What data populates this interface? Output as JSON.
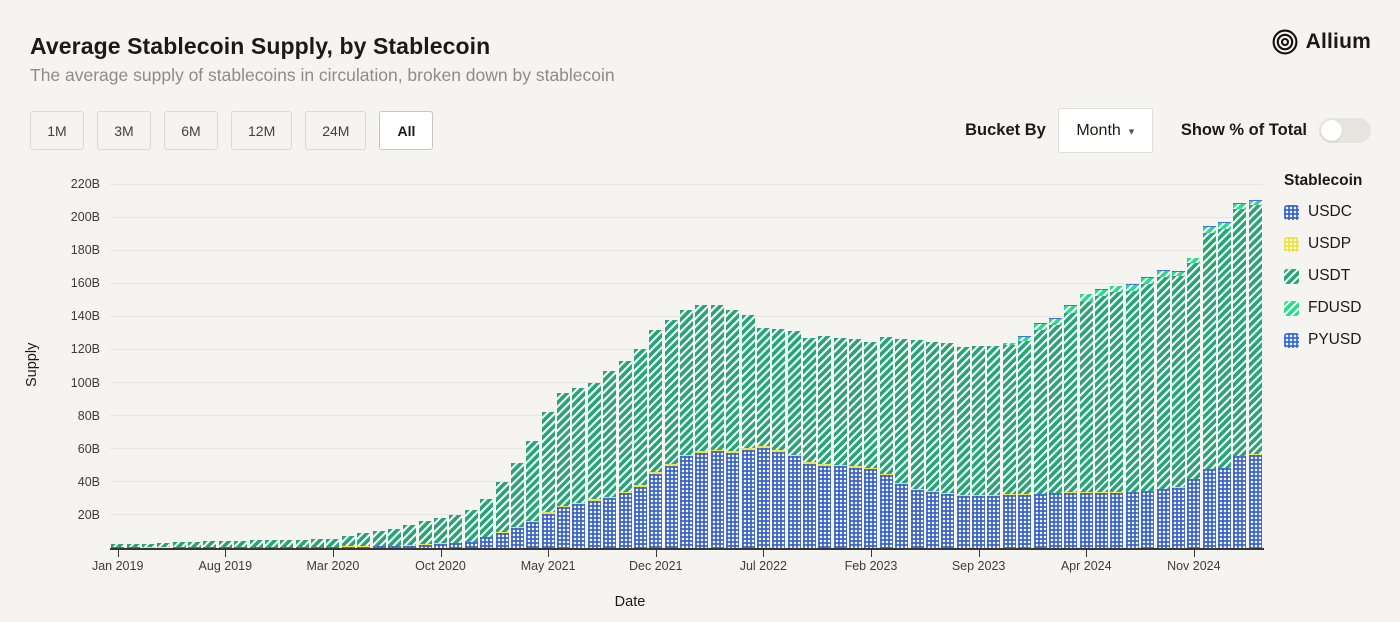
{
  "header": {
    "title": "Average Stablecoin Supply, by Stablecoin",
    "subtitle": "The average supply of stablecoins in circulation, broken down by stablecoin",
    "brand": "Allium"
  },
  "controls": {
    "ranges": [
      "1M",
      "3M",
      "6M",
      "12M",
      "24M",
      "All"
    ],
    "active_range": "All",
    "bucket_by_label": "Bucket By",
    "bucket_value": "Month",
    "toggle_label": "Show % of Total",
    "toggle_on": false
  },
  "chart_data": {
    "type": "bar",
    "stacked": true,
    "xlabel": "Date",
    "ylabel": "Supply",
    "legend_title": "Stablecoin",
    "legend_position": "right",
    "grid": true,
    "ylim": [
      0,
      220
    ],
    "yticks": [
      "20B",
      "40B",
      "60B",
      "80B",
      "100B",
      "120B",
      "140B",
      "160B",
      "180B",
      "200B",
      "220B"
    ],
    "x_tick_labels": [
      "Jan 2019",
      "Aug 2019",
      "Mar 2020",
      "Oct 2020",
      "May 2021",
      "Dec 2021",
      "Jul 2022",
      "Feb 2023",
      "Sep 2023",
      "Apr 2024",
      "Nov 2024"
    ],
    "x_tick_every": 7,
    "unit": "B",
    "x": [
      "Jan 2019",
      "Feb 2019",
      "Mar 2019",
      "Apr 2019",
      "May 2019",
      "Jun 2019",
      "Jul 2019",
      "Aug 2019",
      "Sep 2019",
      "Oct 2019",
      "Nov 2019",
      "Dec 2019",
      "Jan 2020",
      "Feb 2020",
      "Mar 2020",
      "Apr 2020",
      "May 2020",
      "Jun 2020",
      "Jul 2020",
      "Aug 2020",
      "Sep 2020",
      "Oct 2020",
      "Nov 2020",
      "Dec 2020",
      "Jan 2021",
      "Feb 2021",
      "Mar 2021",
      "Apr 2021",
      "May 2021",
      "Jun 2021",
      "Jul 2021",
      "Aug 2021",
      "Sep 2021",
      "Oct 2021",
      "Nov 2021",
      "Dec 2021",
      "Jan 2022",
      "Feb 2022",
      "Mar 2022",
      "Apr 2022",
      "May 2022",
      "Jun 2022",
      "Jul 2022",
      "Aug 2022",
      "Sep 2022",
      "Oct 2022",
      "Nov 2022",
      "Dec 2022",
      "Jan 2023",
      "Feb 2023",
      "Mar 2023",
      "Apr 2023",
      "May 2023",
      "Jun 2023",
      "Jul 2023",
      "Aug 2023",
      "Sep 2023",
      "Oct 2023",
      "Nov 2023",
      "Dec 2023",
      "Jan 2024",
      "Feb 2024",
      "Mar 2024",
      "Apr 2024",
      "May 2024",
      "Jun 2024",
      "Jul 2024",
      "Aug 2024",
      "Sep 2024",
      "Oct 2024",
      "Nov 2024",
      "Dec 2024",
      "Jan 2025",
      "Feb 2025",
      "Mar 2025"
    ],
    "series": [
      {
        "name": "USDC",
        "color": "#3a63c8",
        "pattern": "dots",
        "values": [
          0.35,
          0.35,
          0.3,
          0.3,
          0.35,
          0.4,
          0.4,
          0.45,
          0.45,
          0.45,
          0.45,
          0.5,
          0.52,
          0.45,
          0.45,
          0.7,
          0.73,
          0.93,
          1.0,
          1.4,
          1.9,
          2.7,
          2.9,
          3.5,
          6.5,
          9.0,
          12.0,
          15.5,
          20.5,
          24.5,
          26.5,
          28.5,
          30.0,
          33.0,
          37.0,
          45.0,
          49.5,
          55.5,
          57.5,
          58.5,
          57.5,
          59.5,
          60.5,
          58.0,
          55.5,
          51.0,
          49.5,
          49.5,
          48.5,
          47.5,
          44.0,
          38.5,
          35.0,
          34.0,
          32.5,
          31.5,
          31.5,
          31.5,
          32.0,
          32.0,
          32.5,
          33.0,
          33.5,
          33.5,
          33.5,
          33.5,
          34.0,
          34.5,
          35.5,
          36.5,
          41.5,
          47.5,
          48.5,
          55.5,
          56.5
        ]
      },
      {
        "name": "USDP",
        "color": "#efe13d",
        "pattern": "dots",
        "values": [
          0.15,
          0.12,
          0.12,
          0.12,
          0.15,
          0.17,
          0.17,
          0.17,
          0.2,
          0.2,
          0.2,
          0.2,
          0.2,
          0.2,
          0.2,
          0.25,
          0.25,
          0.25,
          0.25,
          0.25,
          0.25,
          0.25,
          0.25,
          0.25,
          0.4,
          0.5,
          0.7,
          0.9,
          1.0,
          1.0,
          1.0,
          1.0,
          1.0,
          1.0,
          1.0,
          1.0,
          1.0,
          1.0,
          1.0,
          1.0,
          1.0,
          1.0,
          1.0,
          1.0,
          1.0,
          1.0,
          1.0,
          0.9,
          0.85,
          0.8,
          0.8,
          0.75,
          0.7,
          0.7,
          0.6,
          0.55,
          0.5,
          0.5,
          0.45,
          0.45,
          0.4,
          0.35,
          0.3,
          0.25,
          0.2,
          0.15,
          0.15,
          0.15,
          0.15,
          0.12,
          0.12,
          0.12,
          0.1,
          0.1,
          0.1
        ]
      },
      {
        "name": "USDT",
        "color": "#2aa379",
        "pattern": "stripes",
        "values": [
          1.9,
          1.9,
          2.0,
          2.4,
          2.9,
          3.1,
          3.6,
          3.8,
          3.9,
          4.1,
          4.1,
          4.1,
          4.4,
          4.6,
          4.9,
          6.4,
          8.0,
          9.2,
          10.0,
          12.0,
          14.0,
          15.5,
          17.0,
          19.5,
          23.0,
          30.5,
          38.5,
          48.5,
          60.5,
          68.5,
          69.5,
          70.5,
          76.0,
          79.0,
          82.0,
          86.0,
          87.5,
          87.5,
          88.5,
          87.5,
          85.5,
          80.5,
          71.5,
          73.5,
          74.5,
          75.0,
          77.5,
          76.5,
          77.0,
          76.0,
          82.5,
          87.0,
          90.0,
          90.0,
          91.0,
          89.5,
          90.0,
          90.0,
          90.5,
          92.5,
          99.0,
          101.5,
          108.0,
          115.0,
          118.5,
          121.0,
          121.0,
          125.0,
          128.0,
          127.5,
          130.5,
          142.5,
          144.5,
          149.5,
          150.5
        ]
      },
      {
        "name": "FDUSD",
        "color": "#2fd98b",
        "pattern": "stripes",
        "values": [
          0,
          0,
          0,
          0,
          0,
          0,
          0,
          0,
          0,
          0,
          0,
          0,
          0,
          0,
          0,
          0,
          0,
          0,
          0,
          0,
          0,
          0,
          0,
          0,
          0,
          0,
          0,
          0,
          0,
          0,
          0,
          0,
          0,
          0,
          0,
          0,
          0,
          0,
          0,
          0,
          0,
          0,
          0,
          0,
          0,
          0,
          0,
          0,
          0,
          0,
          0,
          0,
          0,
          0,
          0.02,
          0.05,
          0.1,
          0.15,
          0.8,
          2.9,
          3.7,
          3.8,
          4.5,
          4.5,
          4.0,
          3.5,
          4.0,
          3.5,
          3.5,
          2.9,
          2.9,
          3.8,
          3.4,
          2.9,
          2.5
        ]
      },
      {
        "name": "PYUSD",
        "color": "#3468dd",
        "pattern": "dots",
        "values": [
          0,
          0,
          0,
          0,
          0,
          0,
          0,
          0,
          0,
          0,
          0,
          0,
          0,
          0,
          0,
          0,
          0,
          0,
          0,
          0,
          0,
          0,
          0,
          0,
          0,
          0,
          0,
          0,
          0,
          0,
          0,
          0,
          0,
          0,
          0,
          0,
          0,
          0,
          0,
          0,
          0,
          0,
          0,
          0,
          0,
          0,
          0,
          0,
          0,
          0,
          0,
          0,
          0,
          0,
          0,
          0.01,
          0.03,
          0.05,
          0.1,
          0.15,
          0.25,
          0.3,
          0.3,
          0.25,
          0.3,
          0.35,
          0.5,
          0.8,
          0.9,
          0.7,
          0.5,
          0.55,
          0.6,
          0.7,
          0.8
        ]
      }
    ]
  }
}
